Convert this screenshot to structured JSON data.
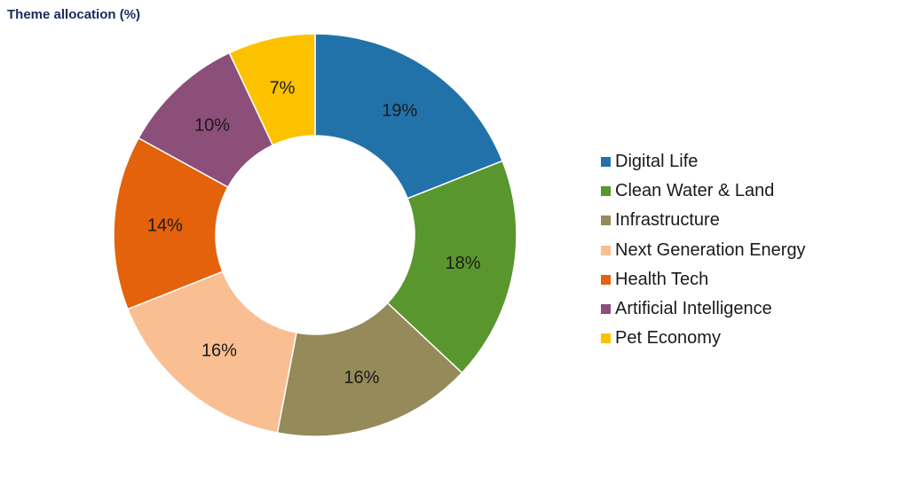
{
  "chart_data": {
    "type": "pie",
    "variant": "donut",
    "title": "Theme allocation (%)",
    "legend_position": "right",
    "slices": [
      {
        "label": "Digital Life",
        "value": 19,
        "display": "19%",
        "color": "#2272aa"
      },
      {
        "label": "Clean Water & Land",
        "value": 18,
        "display": "18%",
        "color": "#5a962e"
      },
      {
        "label": "Infrastructure",
        "value": 16,
        "display": "16%",
        "color": "#948a5a"
      },
      {
        "label": "Next Generation Energy",
        "value": 16,
        "display": "16%",
        "color": "#f9be92"
      },
      {
        "label": "Health Tech",
        "value": 14,
        "display": "14%",
        "color": "#e3620b"
      },
      {
        "label": "Artificial Intelligence",
        "value": 10,
        "display": "10%",
        "color": "#8b4f7a"
      },
      {
        "label": "Pet Economy",
        "value": 7,
        "display": "7%",
        "color": "#fcc200"
      }
    ]
  }
}
